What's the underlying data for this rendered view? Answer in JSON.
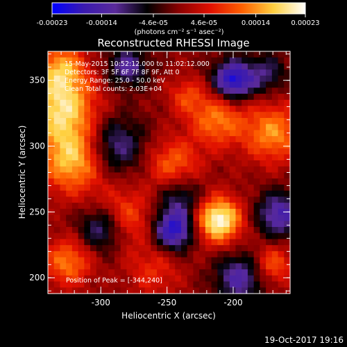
{
  "chart_data": {
    "type": "heatmap",
    "title": "Reconstructed RHESSI Image",
    "xlabel": "Heliocentric X (arcsec)",
    "ylabel": "Heliocentric Y (arcsec)",
    "xlim": [
      -340,
      -157
    ],
    "ylim": [
      188,
      372
    ],
    "xticks": [
      -300,
      -250,
      -200
    ],
    "xtick_labels": [
      "-300",
      "-250",
      "-200"
    ],
    "yticks": [
      200,
      250,
      300,
      350
    ],
    "ytick_labels": [
      "200",
      "250",
      "300",
      "350"
    ],
    "colorbar": {
      "min": -0.00023,
      "max": 0.00023,
      "ticks": [
        -0.00023,
        -0.00014,
        -4.6e-05,
        4.6e-05,
        0.00014,
        0.00023
      ],
      "tick_labels": [
        "-0.00023",
        "-0.00014",
        "-4.6e-05",
        "4.6e-05",
        "0.00014",
        "0.00023"
      ],
      "units_label": "(photons cm⁻² s⁻¹ asec⁻²)"
    },
    "colors": {
      "cmap": [
        "#0000ff",
        "#3a1ab0",
        "#5a2a9a",
        "#000000",
        "#8a0000",
        "#e01000",
        "#ff6000",
        "#ffd040",
        "#ffffff"
      ]
    },
    "annotations": [
      "15-May-2015 10:52:12.000 to 11:02:12.000",
      "Detectors: 3F 5F 6F 7F 8F 9F, Att 0",
      "Energy Range: 25.0 - 50.0 keV",
      "Clean    Total counts: 2.03E+04"
    ],
    "peak_label": "Position of Peak = [-344,240]",
    "peak": [
      -344,
      240
    ],
    "sources": [
      {
        "x": -211,
        "y": 244,
        "r": 17,
        "amp": 1.0
      },
      {
        "x": -321,
        "y": 290,
        "r": 25,
        "amp": 0.75
      },
      {
        "x": -330,
        "y": 330,
        "r": 26,
        "amp": 0.8
      },
      {
        "x": -285,
        "y": 245,
        "r": 22,
        "amp": 0.55
      },
      {
        "x": -245,
        "y": 285,
        "r": 20,
        "amp": 0.5
      },
      {
        "x": -170,
        "y": 310,
        "r": 22,
        "amp": 0.6
      },
      {
        "x": -212,
        "y": 320,
        "r": 20,
        "amp": 0.55
      },
      {
        "x": -325,
        "y": 212,
        "r": 18,
        "amp": 0.55
      },
      {
        "x": -330,
        "y": 360,
        "r": 18,
        "amp": 0.55
      },
      {
        "x": -260,
        "y": 205,
        "r": 20,
        "amp": 0.3
      },
      {
        "x": -170,
        "y": 210,
        "r": 15,
        "amp": 0.45
      },
      {
        "x": -235,
        "y": 338,
        "r": 14,
        "amp": 0.35
      },
      {
        "x": -200,
        "y": 350,
        "r": 15,
        "amp": -0.9
      },
      {
        "x": -245,
        "y": 236,
        "r": 15,
        "amp": -0.85
      },
      {
        "x": -298,
        "y": 238,
        "r": 18,
        "amp": -0.7
      },
      {
        "x": -195,
        "y": 200,
        "r": 18,
        "amp": -0.6
      },
      {
        "x": -290,
        "y": 300,
        "r": 22,
        "amp": -0.55
      },
      {
        "x": -165,
        "y": 248,
        "r": 17,
        "amp": -0.65
      },
      {
        "x": -240,
        "y": 262,
        "r": 17,
        "amp": -0.45
      },
      {
        "x": -280,
        "y": 360,
        "r": 15,
        "amp": -0.55
      },
      {
        "x": -175,
        "y": 355,
        "r": 15,
        "amp": -0.4
      }
    ]
  },
  "footer": {
    "timestamp": "19-Oct-2017 19:16"
  }
}
